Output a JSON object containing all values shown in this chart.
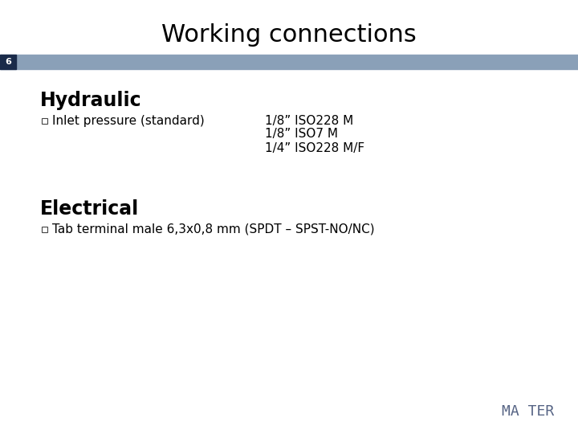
{
  "title": "Working connections",
  "slide_number": "6",
  "background_color": "#ffffff",
  "title_color": "#000000",
  "title_fontsize": 22,
  "header_bar_color": "#8aa0b8",
  "header_bar_left_color": "#1a2b4a",
  "section1_heading": "Hydraulic",
  "section1_heading_fontsize": 17,
  "section1_bullet_label": "Inlet pressure (standard)",
  "section1_bullet_lines": [
    "1/8” ISO228 M",
    "1/8” ISO7 M",
    "1/4” ISO228 M/F"
  ],
  "section2_heading": "Electrical",
  "section2_heading_fontsize": 17,
  "section2_bullet_text": "Tab terminal male 6,3x0,8 mm (SPDT – SPST-NO/NC)",
  "bullet_fontsize": 11,
  "heading_fontsize": 17,
  "watermark_text": "MA TER",
  "watermark_color": "#3a4a70",
  "watermark_fontsize": 13,
  "slide_number_color": "#ffffff",
  "slide_number_fontsize": 8
}
